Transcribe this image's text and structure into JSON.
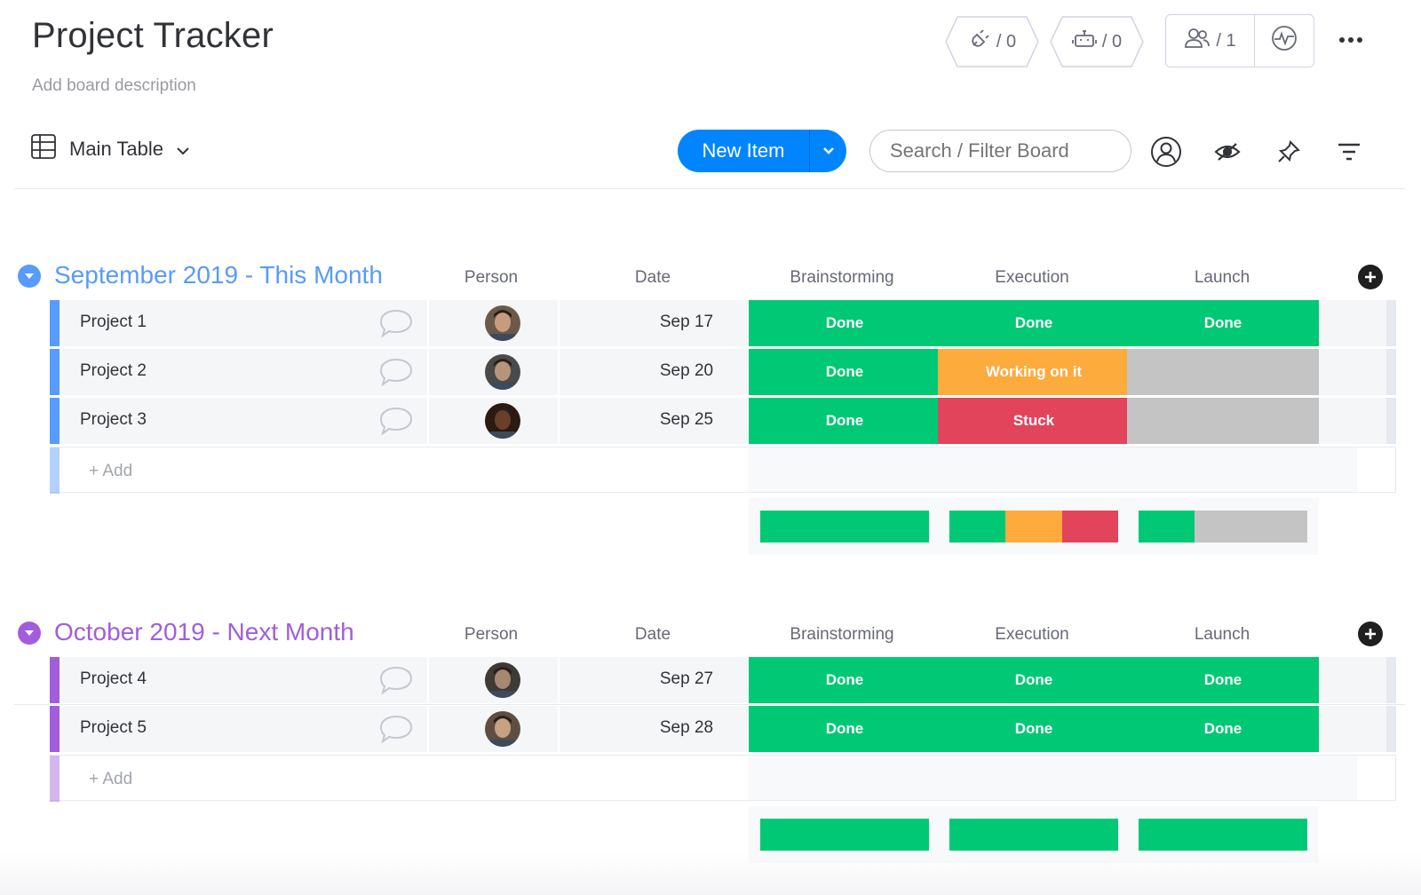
{
  "board": {
    "title": "Project Tracker",
    "description": "Add board description"
  },
  "top_actions": {
    "integrations_count": "/ 0",
    "automations_count": "/ 0",
    "members_count": "/ 1",
    "icons": [
      "integrations-icon",
      "automations-icon",
      "members-icon",
      "activity-icon",
      "more-icon"
    ]
  },
  "toolbar": {
    "view_label": "Main Table",
    "new_item_label": "New Item",
    "search_placeholder": "Search / Filter Board",
    "icons": [
      "person-filter-icon",
      "hide-icon",
      "pin-icon",
      "filter-icon"
    ]
  },
  "columns": [
    "Person",
    "Date",
    "Brainstorming",
    "Execution",
    "Launch"
  ],
  "colors": {
    "done": "#00c875",
    "working": "#fdab3d",
    "stuck": "#e2445c",
    "empty": "#c4c4c4",
    "group1": "#579bfc",
    "group2": "#a25ddc"
  },
  "groups": [
    {
      "title": "September 2019 - This Month",
      "color": "#579bfc",
      "add_label": "+ Add",
      "rows": [
        {
          "name": "Project 1",
          "date": "Sep 17",
          "statuses": [
            "Done",
            "Done",
            "Done"
          ]
        },
        {
          "name": "Project 2",
          "date": "Sep 20",
          "statuses": [
            "Done",
            "Working on it",
            ""
          ]
        },
        {
          "name": "Project 3",
          "date": "Sep 25",
          "statuses": [
            "Done",
            "Stuck",
            ""
          ]
        }
      ],
      "summary": [
        [
          {
            "status": "Done",
            "fraction": 1.0
          }
        ],
        [
          {
            "status": "Done",
            "fraction": 0.3333
          },
          {
            "status": "Working on it",
            "fraction": 0.3333
          },
          {
            "status": "Stuck",
            "fraction": 0.3334
          }
        ],
        [
          {
            "status": "Done",
            "fraction": 0.3333
          },
          {
            "status": "",
            "fraction": 0.6667
          }
        ]
      ]
    },
    {
      "title": "October 2019 - Next Month",
      "color": "#a25ddc",
      "add_label": "+ Add",
      "rows": [
        {
          "name": "Project 4",
          "date": "Sep 27",
          "statuses": [
            "Done",
            "Done",
            "Done"
          ]
        },
        {
          "name": "Project 5",
          "date": "Sep 28",
          "statuses": [
            "Done",
            "Done",
            "Done"
          ]
        }
      ],
      "summary": [
        [
          {
            "status": "Done",
            "fraction": 1.0
          }
        ],
        [
          {
            "status": "Done",
            "fraction": 1.0
          }
        ],
        [
          {
            "status": "Done",
            "fraction": 1.0
          }
        ]
      ]
    }
  ]
}
